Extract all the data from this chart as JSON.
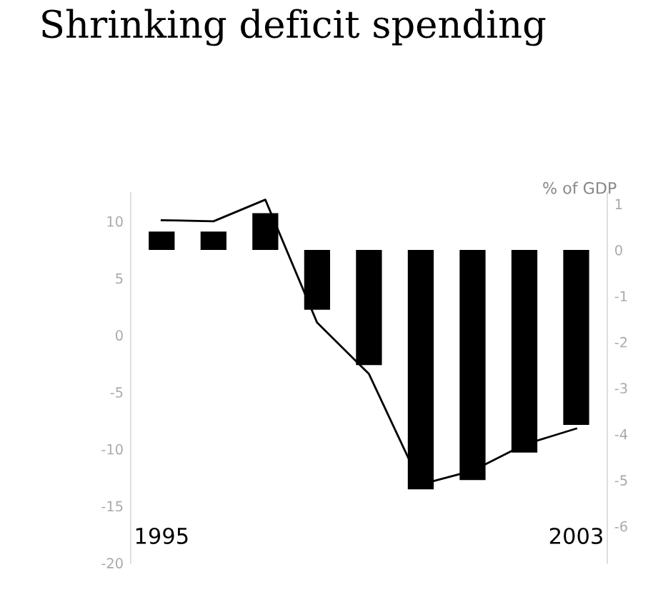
{
  "chart_data": {
    "type": "bar",
    "title": "Shrinking deficit spending",
    "y2label": "% of GDP",
    "categories": [
      "1995",
      null,
      null,
      null,
      null,
      null,
      null,
      null,
      "2003"
    ],
    "series": [
      {
        "axis": "y2",
        "color": "#000000",
        "values": [
          0.4,
          0.4,
          0.8,
          -1.3,
          -2.5,
          -5.2,
          -5.0,
          -4.4,
          -3.8
        ]
      },
      {
        "type": "line",
        "axis": "y",
        "color": "#000000",
        "values": [
          10.1,
          10.0,
          11.9,
          1.1,
          -3.4,
          -13.1,
          -11.9,
          -9.6,
          -8.2
        ]
      }
    ],
    "ylim": [
      -20,
      12.5
    ],
    "yticks": [
      10,
      5,
      0,
      -5,
      -10,
      -15,
      -20
    ],
    "y2lim": [
      -6.8,
      1.24
    ],
    "y2ticks": [
      1,
      0,
      -1,
      -2,
      -3,
      -4,
      -5,
      -6
    ],
    "grid": false,
    "legend": false,
    "marker": "none",
    "line_style": "solid"
  }
}
